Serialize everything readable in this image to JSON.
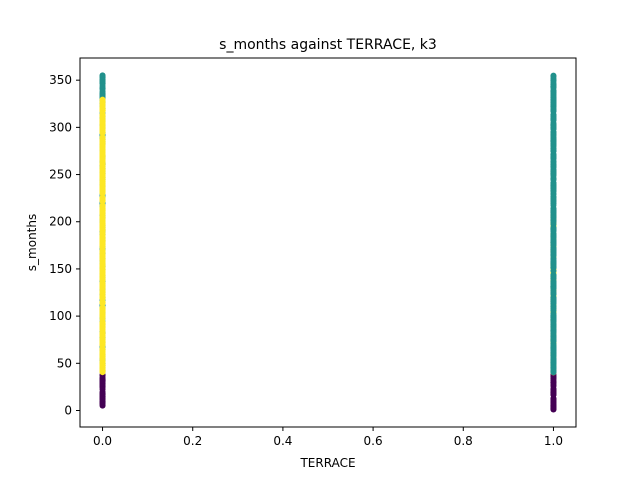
{
  "chart_data": {
    "type": "scatter",
    "title": "s_months against TERRACE, k3",
    "xlabel": "TERRACE",
    "ylabel": "s_months",
    "xlim": [
      -0.05,
      1.05
    ],
    "ylim": [
      -17.5,
      373.5
    ],
    "xticks": [
      0.0,
      0.2,
      0.4,
      0.6,
      0.8,
      1.0
    ],
    "yticks": [
      0,
      50,
      100,
      150,
      200,
      250,
      300,
      350
    ],
    "grid": false,
    "legend": "none",
    "colors": {
      "cluster_0": "#440154",
      "cluster_1": "#21918c",
      "cluster_2": "#fde725"
    },
    "series": [
      {
        "x_value": 0.0,
        "cluster": "cluster_0",
        "y_ranges": [
          [
            1,
            38
          ]
        ]
      },
      {
        "x_value": 0.0,
        "cluster": "cluster_1",
        "y_ranges": [
          [
            40,
            356
          ]
        ]
      },
      {
        "x_value": 0.0,
        "cluster": "cluster_2",
        "y_ranges": [
          [
            40,
            330
          ]
        ]
      },
      {
        "x_value": 1.0,
        "cluster": "cluster_0",
        "y_ranges": [
          [
            1,
            40
          ]
        ]
      },
      {
        "x_value": 1.0,
        "cluster": "cluster_2",
        "y_ranges": [
          [
            40,
            212
          ]
        ]
      },
      {
        "x_value": 1.0,
        "cluster": "cluster_1",
        "y_ranges": [
          [
            40,
            355
          ]
        ]
      }
    ]
  }
}
